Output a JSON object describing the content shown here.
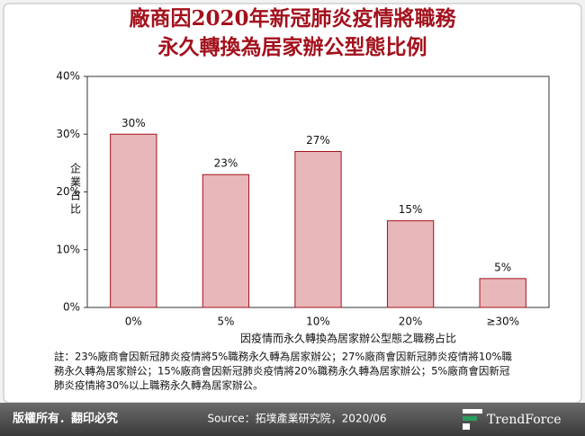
{
  "chart_data": {
    "type": "bar",
    "title": [
      "廠商因2020年新冠肺炎疫情將職務",
      "永久轉換為居家辦公型態比例"
    ],
    "x_label": "因疫情而永久轉換為居家辦公型態之職務占比",
    "y_label": "企業占比",
    "categories": [
      "0%",
      "5%",
      "10%",
      "20%",
      "≥30%"
    ],
    "values": [
      30,
      23,
      27,
      15,
      5
    ],
    "value_labels": [
      "30%",
      "23%",
      "27%",
      "15%",
      "5%"
    ],
    "color": "#e8b7ba",
    "ylim": [
      0,
      40
    ],
    "yticks": [
      {
        "value": 0,
        "label": "0%"
      },
      {
        "value": 10,
        "label": "10%"
      },
      {
        "value": 20,
        "label": "20%"
      },
      {
        "value": 30,
        "label": "30%"
      },
      {
        "value": 40,
        "label": "40%"
      }
    ],
    "note": [
      "註：23%廠商會因新冠肺炎疫情將5%職務永久轉為居家辦公；27%廠商會因新冠肺炎疫情將10%職",
      "務永久轉為居家辦公；15%廠商會因新冠肺炎疫情將20%職務永久轉為居家辦公；5%廠商會因新冠",
      "肺炎疫情將30%以上職務永久轉為居家辦公。"
    ],
    "copyright": "版權所有．翻印必究",
    "source": "Source：拓墣產業研究院，2020/06",
    "brand": "TrendForce"
  }
}
